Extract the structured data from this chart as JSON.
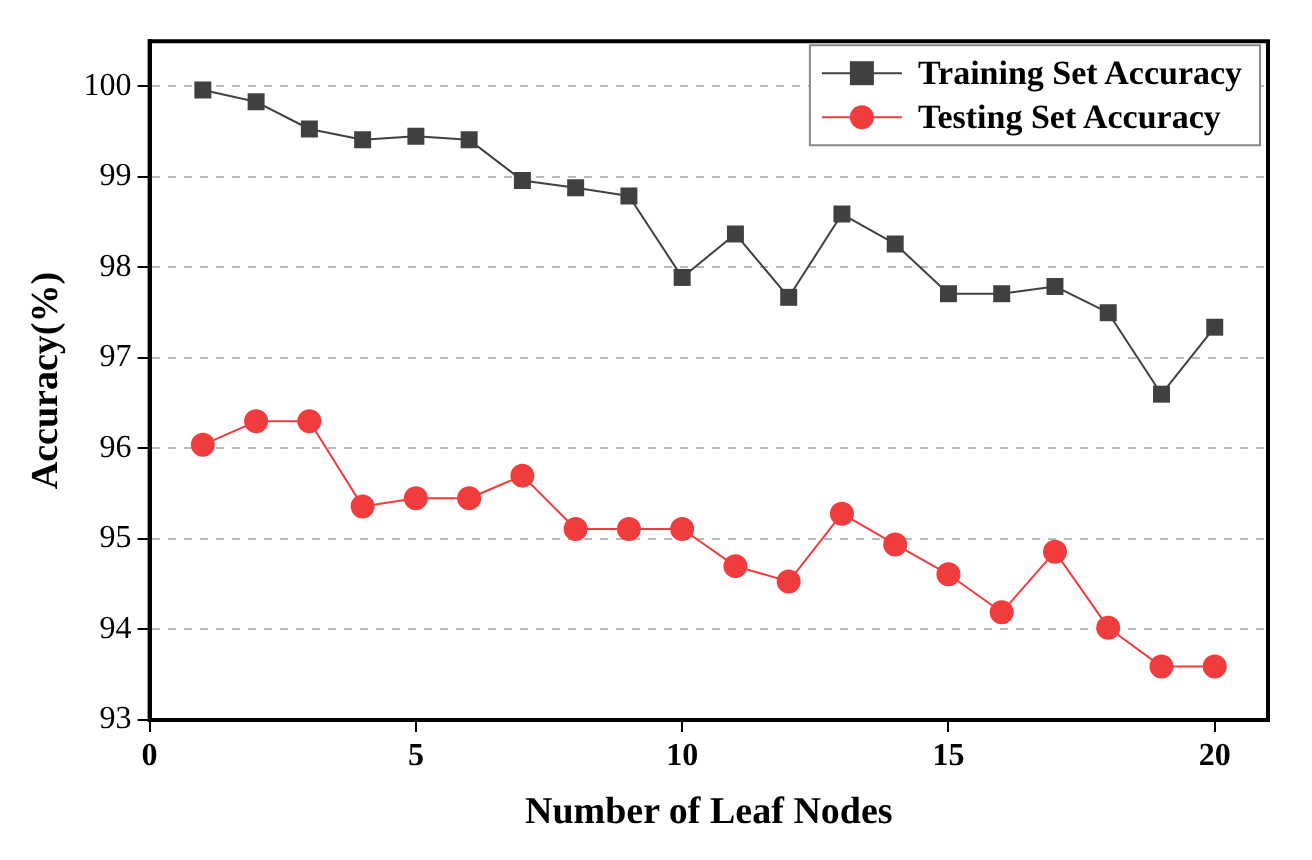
{
  "chart_data": {
    "type": "line",
    "xlabel": "Number of Leaf Nodes",
    "ylabel": "Accuracy(%)",
    "x": [
      1,
      2,
      3,
      4,
      5,
      6,
      7,
      8,
      9,
      10,
      11,
      12,
      13,
      14,
      15,
      16,
      17,
      18,
      19,
      20
    ],
    "series": [
      {
        "name": "Training Set Accuracy",
        "color": "#404040",
        "marker": "square",
        "values": [
          99.96,
          99.83,
          99.53,
          99.41,
          99.45,
          99.41,
          98.96,
          98.88,
          98.79,
          97.89,
          98.37,
          97.67,
          98.59,
          98.26,
          97.71,
          97.71,
          97.79,
          97.5,
          96.6,
          97.34
        ]
      },
      {
        "name": "Testing Set Accuracy",
        "color": "#f03c3c",
        "marker": "circle",
        "values": [
          96.04,
          96.3,
          96.3,
          95.36,
          95.45,
          95.45,
          95.7,
          95.11,
          95.11,
          95.11,
          94.7,
          94.53,
          95.28,
          94.94,
          94.61,
          94.19,
          94.86,
          94.02,
          93.59,
          93.59
        ]
      }
    ],
    "xlim": [
      0,
      21
    ],
    "xticks": [
      0,
      5,
      10,
      15,
      20
    ],
    "ylim": [
      93,
      100.5
    ],
    "yticks": [
      93,
      94,
      95,
      96,
      97,
      98,
      99,
      100
    ],
    "grid": "y",
    "legend": "top right",
    "line_style": "solid"
  }
}
